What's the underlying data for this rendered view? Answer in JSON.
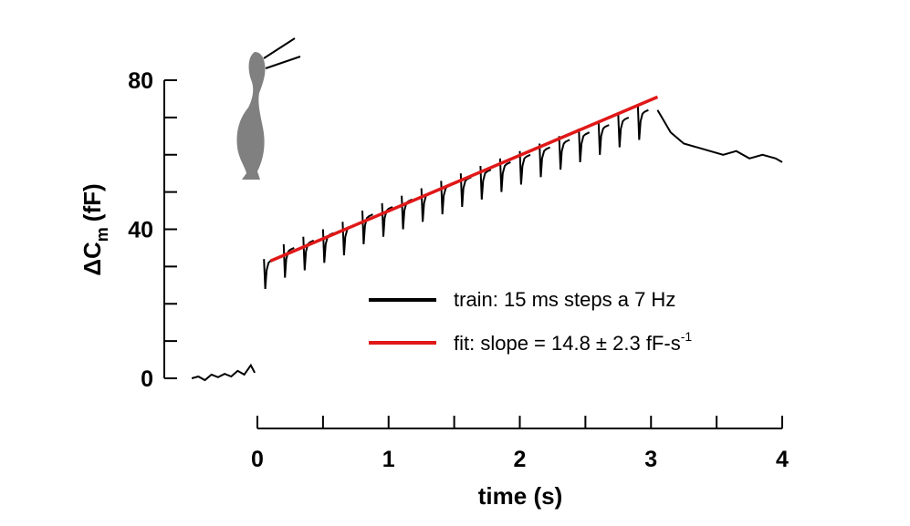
{
  "chart_data": {
    "type": "line",
    "xlabel": "time (s)",
    "ylabel": {
      "main": "ΔC",
      "sub": "m",
      "unit": "(fF)"
    },
    "xlim": [
      0,
      4
    ],
    "ylim": [
      0,
      80
    ],
    "x_ticks": [
      0,
      1,
      2,
      3,
      4
    ],
    "y_ticks": [
      0,
      40,
      80
    ],
    "grid": false,
    "legend_position": "center-right",
    "series": [
      {
        "name": "train:  15 ms steps a 7 Hz",
        "color": "#000000",
        "baseline": {
          "x": [
            -0.5,
            -0.45,
            -0.4,
            -0.35,
            -0.3,
            -0.25,
            -0.2,
            -0.15,
            -0.1,
            -0.05,
            -0.02
          ],
          "y": [
            0,
            0.5,
            -0.5,
            1,
            0.3,
            1.2,
            0.5,
            2,
            1,
            3.5,
            1.5
          ]
        },
        "steps": {
          "x": [
            0.05,
            0.2,
            0.35,
            0.5,
            0.65,
            0.8,
            0.95,
            1.1,
            1.25,
            1.4,
            1.55,
            1.7,
            1.85,
            2.0,
            2.15,
            2.3,
            2.45,
            2.6,
            2.75,
            2.9
          ],
          "baseline": [
            31,
            34,
            36,
            38,
            40,
            43,
            45,
            47,
            49,
            51,
            53,
            55,
            57,
            59,
            61,
            63,
            65,
            67,
            69,
            71
          ],
          "peak": [
            32,
            36,
            38,
            40,
            42,
            45,
            47,
            49,
            51,
            53,
            55,
            57,
            59,
            61,
            63,
            65,
            67,
            69,
            71,
            73
          ],
          "trough": [
            24,
            27,
            29,
            31,
            33,
            36,
            38,
            40,
            42,
            44,
            46,
            48,
            50,
            52,
            54,
            56,
            58,
            60,
            62,
            64
          ]
        },
        "decay": {
          "x": [
            3.05,
            3.15,
            3.25,
            3.35,
            3.45,
            3.55,
            3.65,
            3.75,
            3.85,
            3.95,
            4.0
          ],
          "y": [
            72,
            66,
            63,
            62,
            61,
            60,
            61,
            59,
            60,
            59,
            58
          ]
        }
      },
      {
        "name": "fit:  slope = 14.8 ± 2.3 fF-s",
        "name_superscript": "-1",
        "color": "#e01818",
        "x": [
          0.1,
          3.05
        ],
        "y": [
          31.5,
          75.5
        ]
      }
    ]
  }
}
